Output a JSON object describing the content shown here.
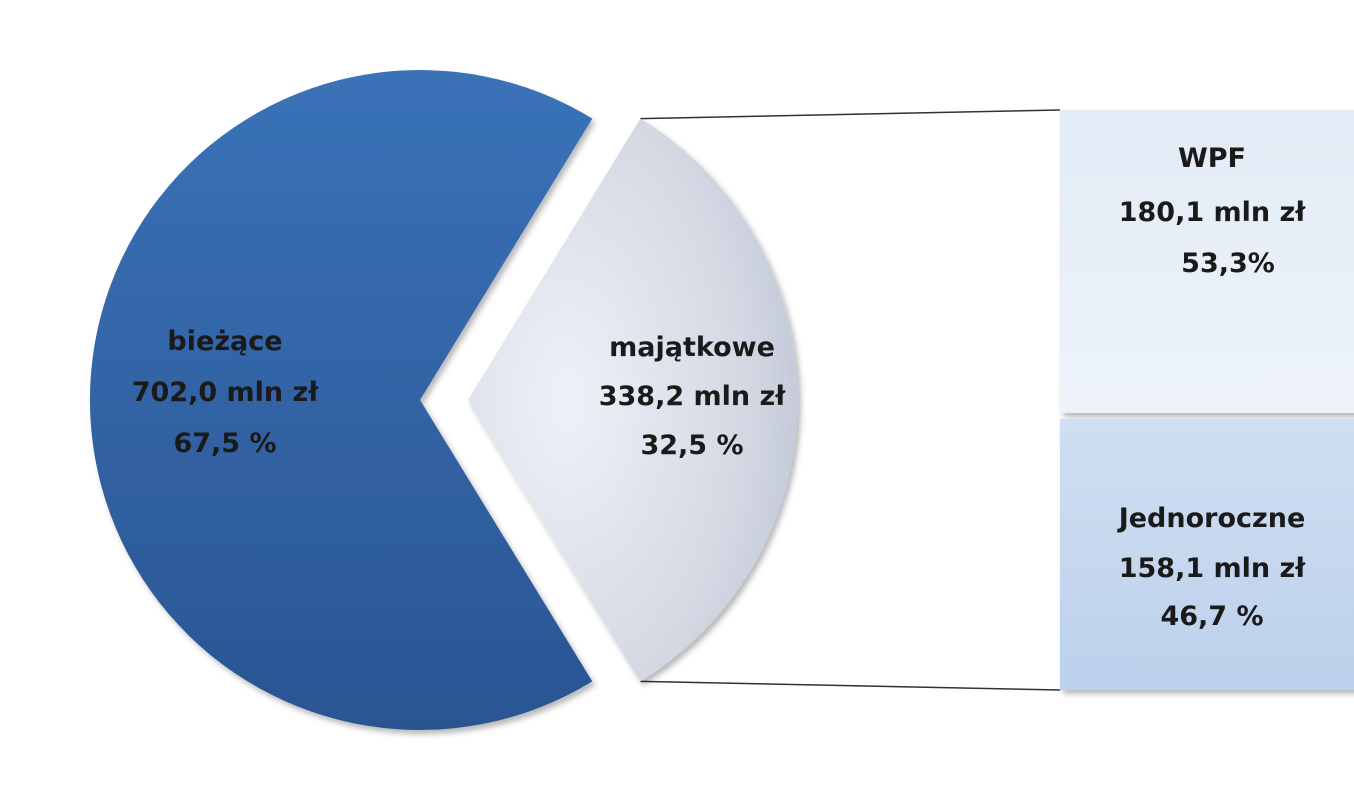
{
  "chart_data": {
    "type": "pie",
    "variant": "bar-of-pie",
    "slices": [
      {
        "name": "bieżące",
        "value": 702.0,
        "value_label": "702,0 mln zł",
        "percent": 67.5,
        "percent_label": "67,5 %",
        "color": "#2f5f9e"
      },
      {
        "name": "majątkowe",
        "value": 338.2,
        "value_label": "338,2 mln zł",
        "percent": 32.5,
        "percent_label": "32,5 %",
        "color": "#c9cedb",
        "exploded": true
      }
    ],
    "breakdown_of": "majątkowe",
    "breakdown": [
      {
        "name": "WPF",
        "value": 180.1,
        "value_label": "180,1 mln zł",
        "percent": 53.3,
        "percent_label": "53,3%",
        "color": "#e6eef8"
      },
      {
        "name": "Jednoroczne",
        "value": 158.1,
        "value_label": "158,1 mln zł",
        "percent": 46.7,
        "percent_label": "46,7 %",
        "color": "#c3d6ee"
      }
    ],
    "title": "",
    "legend": "none"
  }
}
